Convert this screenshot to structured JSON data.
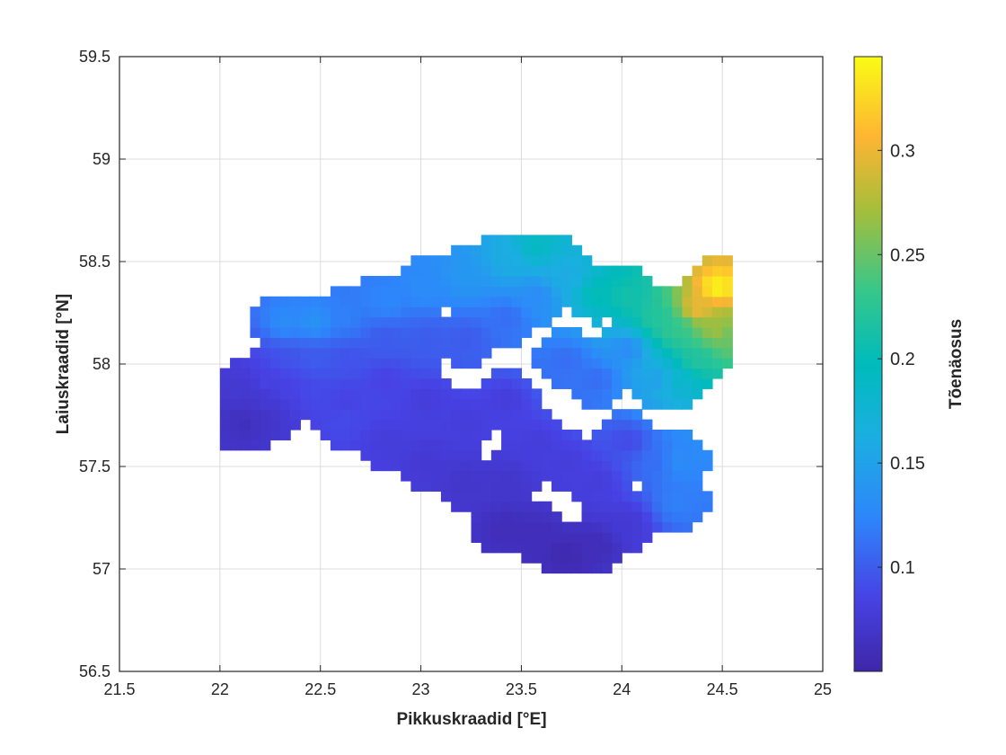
{
  "chart_data": {
    "type": "heatmap",
    "title": "",
    "xlabel": "Pikkuskraadid [°E]",
    "ylabel": "Laiuskraadid [°N]",
    "colorbar_label": "Tõenäosus",
    "xlim": [
      21.5,
      25
    ],
    "ylim": [
      56.5,
      59.5
    ],
    "xticks": [
      21.5,
      22,
      22.5,
      23,
      23.5,
      24,
      24.5,
      25
    ],
    "xtick_labels": [
      "21.5",
      "22",
      "22.5",
      "23",
      "23.5",
      "24",
      "24.5",
      "25"
    ],
    "yticks": [
      56.5,
      57,
      57.5,
      58,
      58.5,
      59,
      59.5
    ],
    "ytick_labels": [
      "56.5",
      "57",
      "57.5",
      "58",
      "58.5",
      "59",
      "59.5"
    ],
    "colorbar_range": [
      0.05,
      0.345
    ],
    "colorbar_ticks": [
      0.1,
      0.15,
      0.2,
      0.25,
      0.3
    ],
    "colorbar_tick_labels": [
      "0.1",
      "0.15",
      "0.2",
      "0.25",
      "0.3"
    ],
    "colormap": "parula",
    "grid": true,
    "cell_size_deg": [
      0.05,
      0.05
    ],
    "cells": [
      [
        22.05,
        57.84,
        0.075
      ],
      [
        22.05,
        57.78,
        0.07
      ],
      [
        22.05,
        57.72,
        0.065
      ],
      [
        22.1,
        57.86,
        0.075
      ],
      [
        22.1,
        57.8,
        0.07
      ],
      [
        22.1,
        57.74,
        0.065
      ],
      [
        22.1,
        57.68,
        0.062
      ],
      [
        22.2,
        57.9,
        0.085
      ],
      [
        22.2,
        57.8,
        0.075
      ],
      [
        22.2,
        57.72,
        0.068
      ],
      [
        22.3,
        58.18,
        0.13
      ],
      [
        22.3,
        58.0,
        0.095
      ],
      [
        22.3,
        57.85,
        0.085
      ],
      [
        22.45,
        58.18,
        0.135
      ],
      [
        22.45,
        58.0,
        0.1
      ],
      [
        22.45,
        57.82,
        0.09
      ],
      [
        22.6,
        58.2,
        0.12
      ],
      [
        22.6,
        58.0,
        0.095
      ],
      [
        22.6,
        57.8,
        0.085
      ],
      [
        22.6,
        57.7,
        0.09
      ],
      [
        22.8,
        58.28,
        0.125
      ],
      [
        22.8,
        58.1,
        0.1
      ],
      [
        22.8,
        57.9,
        0.085
      ],
      [
        22.8,
        57.6,
        0.08
      ],
      [
        23.0,
        58.35,
        0.13
      ],
      [
        23.0,
        58.1,
        0.1
      ],
      [
        23.0,
        57.8,
        0.08
      ],
      [
        23.0,
        57.5,
        0.075
      ],
      [
        23.2,
        58.4,
        0.14
      ],
      [
        23.2,
        58.1,
        0.1
      ],
      [
        23.2,
        57.7,
        0.08
      ],
      [
        23.2,
        57.4,
        0.07
      ],
      [
        23.4,
        58.48,
        0.16
      ],
      [
        23.4,
        58.2,
        0.11
      ],
      [
        23.4,
        57.8,
        0.08
      ],
      [
        23.4,
        57.4,
        0.07
      ],
      [
        23.4,
        57.18,
        0.06
      ],
      [
        23.55,
        58.55,
        0.19
      ],
      [
        23.55,
        58.3,
        0.13
      ],
      [
        23.55,
        57.6,
        0.08
      ],
      [
        23.55,
        57.15,
        0.06
      ],
      [
        23.7,
        58.4,
        0.16
      ],
      [
        23.7,
        58.0,
        0.11
      ],
      [
        23.7,
        57.5,
        0.08
      ],
      [
        23.7,
        57.05,
        0.055
      ],
      [
        23.85,
        58.32,
        0.2
      ],
      [
        23.85,
        57.9,
        0.11
      ],
      [
        23.85,
        57.4,
        0.08
      ],
      [
        23.85,
        57.1,
        0.06
      ],
      [
        24.0,
        58.3,
        0.21
      ],
      [
        24.0,
        58.05,
        0.13
      ],
      [
        24.0,
        57.6,
        0.09
      ],
      [
        24.0,
        57.2,
        0.075
      ],
      [
        24.15,
        58.2,
        0.22
      ],
      [
        24.15,
        57.9,
        0.15
      ],
      [
        24.15,
        57.5,
        0.11
      ],
      [
        24.25,
        58.15,
        0.23
      ],
      [
        24.25,
        57.9,
        0.18
      ],
      [
        24.25,
        57.5,
        0.13
      ],
      [
        24.25,
        57.3,
        0.12
      ],
      [
        24.35,
        58.25,
        0.3
      ],
      [
        24.35,
        58.0,
        0.22
      ],
      [
        24.45,
        58.35,
        0.34
      ],
      [
        24.45,
        58.15,
        0.27
      ],
      [
        24.5,
        58.1,
        0.25
      ]
    ]
  }
}
